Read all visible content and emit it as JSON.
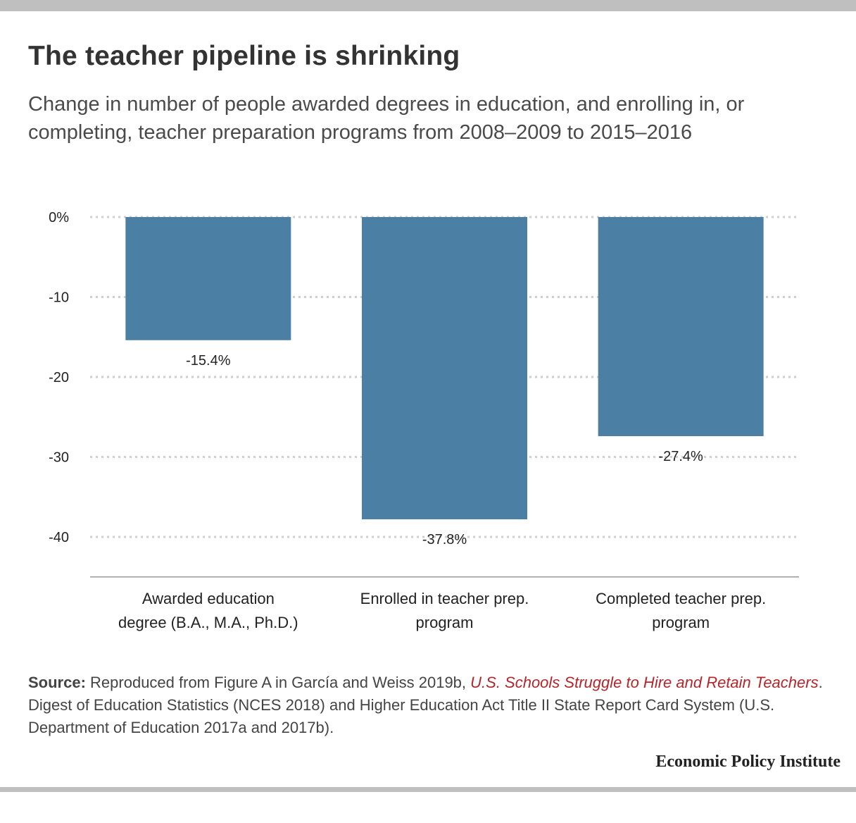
{
  "title": "The teacher pipeline is shrinking",
  "subtitle": "Change in number of people awarded degrees in education, and enrolling in, or completing, teacher preparation programs from 2008–2009 to 2015–2016",
  "chart_data": {
    "type": "bar",
    "title": "",
    "xlabel": "",
    "ylabel": "",
    "categories": [
      [
        "Awarded education",
        "degree (B.A., M.A., Ph.D.)"
      ],
      [
        "Enrolled in teacher prep.",
        "program"
      ],
      [
        "Completed teacher prep.",
        "program"
      ]
    ],
    "values": [
      -15.4,
      -37.8,
      -27.4
    ],
    "data_labels": [
      "-15.4%",
      "-37.8%",
      "-27.4%"
    ],
    "ylim": [
      -45,
      0
    ],
    "yticks": [
      0,
      -10,
      -20,
      -30,
      -40
    ],
    "ytick_labels": [
      "0%",
      "-10",
      "-20",
      "-30",
      "-40"
    ],
    "grid": true,
    "bar_color": "#4b7fa3",
    "grid_color": "#cfcfcf"
  },
  "source": {
    "label": "Source:",
    "text_before": " Reproduced from Figure A in García and Weiss 2019b, ",
    "link": "U.S. Schools Struggle to Hire and Retain Teachers",
    "text_after": ". Digest of Education Statistics (NCES 2018) and Higher Education Act Title II State Report Card System (U.S. Department of Education 2017a and 2017b)."
  },
  "brand": "Economic Policy Institute"
}
